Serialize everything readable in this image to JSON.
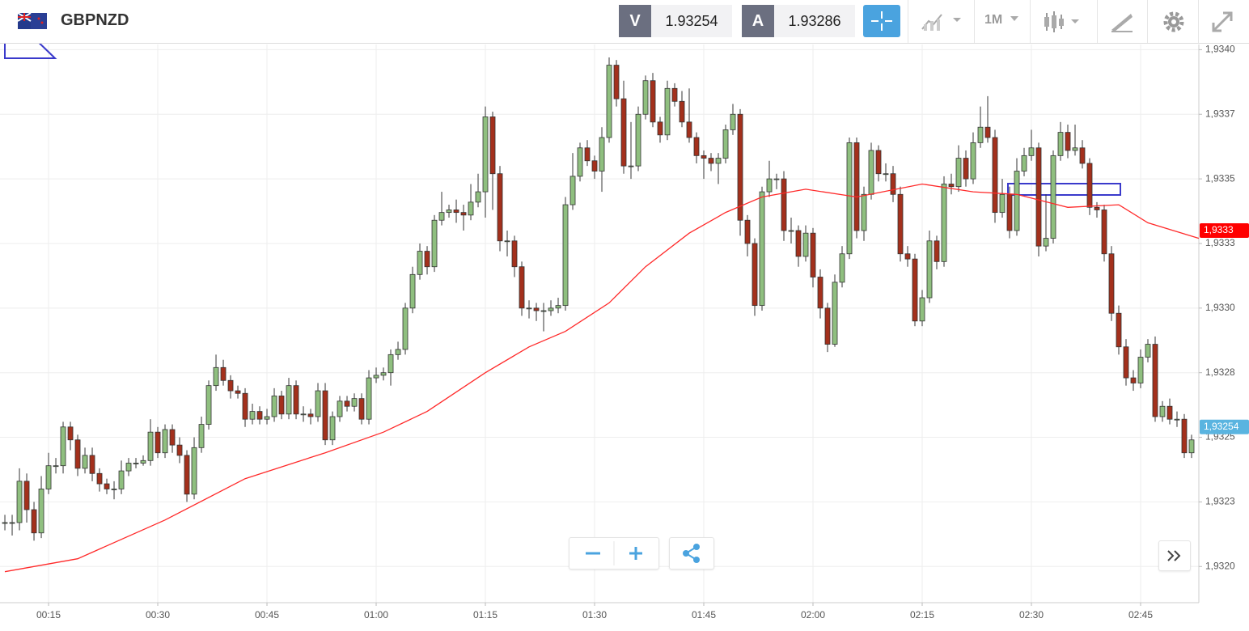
{
  "toolbar": {
    "symbol": "GBPNZD",
    "bid_label": "V",
    "bid": "1.93254",
    "ask_label": "A",
    "ask": "1.93286",
    "timeframe": "1M"
  },
  "chart_data": {
    "type": "candlestick",
    "x": [
      9,
      10,
      11,
      12,
      13,
      14,
      15,
      16,
      17,
      18,
      19,
      20,
      21,
      22,
      23,
      24,
      25,
      26,
      27,
      28,
      29,
      30,
      31,
      32,
      33,
      34,
      35,
      36,
      37,
      38,
      39,
      40,
      41,
      42,
      43,
      44,
      45,
      46,
      47,
      48,
      49,
      50,
      51,
      52,
      53,
      54,
      55,
      56,
      57,
      58,
      59,
      60,
      61,
      62,
      63,
      64,
      65,
      66,
      67,
      68,
      69,
      70,
      71,
      72,
      73,
      74,
      75,
      76,
      77,
      78,
      79,
      80,
      81,
      82,
      83,
      84,
      85,
      86,
      87,
      88,
      89,
      90,
      91,
      92,
      93,
      94,
      95,
      96,
      97,
      98,
      99,
      100,
      101,
      102,
      103,
      104,
      105,
      106,
      107,
      108,
      109,
      110,
      111,
      112,
      113,
      114,
      115,
      116,
      117,
      118,
      119,
      120,
      121,
      122,
      123,
      124,
      125,
      126,
      127,
      128,
      129,
      130,
      131,
      132,
      133,
      134,
      135,
      136,
      137,
      138,
      139,
      140,
      141,
      142,
      143,
      144,
      145,
      146,
      147,
      148,
      149,
      150,
      151,
      152,
      153,
      154,
      155,
      156,
      157,
      158,
      159,
      160,
      161,
      162,
      163,
      164,
      165,
      166,
      167,
      168,
      169,
      170,
      171,
      172
    ],
    "open": [
      1.93217,
      1.93217,
      1.93217,
      1.93233,
      1.93222,
      1.93213,
      1.9323,
      1.93239,
      1.93239,
      1.93254,
      1.93249,
      1.93238,
      1.93243,
      1.93236,
      1.93232,
      1.9323,
      1.9323,
      1.93237,
      1.9324,
      1.9324,
      1.93241,
      1.93252,
      1.93244,
      1.93253,
      1.93247,
      1.93243,
      1.93228,
      1.93246,
      1.93255,
      1.9327,
      1.93277,
      1.93272,
      1.93268,
      1.93267,
      1.93257,
      1.9326,
      1.93257,
      1.93258,
      1.93266,
      1.93259,
      1.9327,
      1.93259,
      1.93259,
      1.93258,
      1.93268,
      1.93249,
      1.93258,
      1.93264,
      1.93262,
      1.93265,
      1.93257,
      1.93273,
      1.93274,
      1.93275,
      1.93282,
      1.93284,
      1.933,
      1.93313,
      1.93322,
      1.93316,
      1.93334,
      1.93337,
      1.93338,
      1.93337,
      1.93336,
      1.93341,
      1.93345,
      1.93374,
      1.93352,
      1.93326,
      1.93326,
      1.93316,
      1.933,
      1.933,
      1.93299,
      1.93299,
      1.933,
      1.93301,
      1.9334,
      1.93351,
      1.93362,
      1.93357,
      1.93353,
      1.93366,
      1.93394,
      1.93381,
      1.93355,
      1.93355,
      1.93375,
      1.93388,
      1.93372,
      1.93367,
      1.93385,
      1.9338,
      1.93372,
      1.93366,
      1.93359,
      1.93358,
      1.93356,
      1.93358,
      1.93369,
      1.93375,
      1.93334,
      1.93325,
      1.93301,
      1.93345,
      1.9335,
      1.9335,
      1.9333,
      1.9333,
      1.9332,
      1.93329,
      1.93312,
      1.933,
      1.93286,
      1.9331,
      1.93321,
      1.93364,
      1.9333,
      1.93344,
      1.93361,
      1.93352,
      1.93352,
      1.93344,
      1.93321,
      1.93319,
      1.93295,
      1.93304,
      1.93326,
      1.93318,
      1.93348,
      1.93347,
      1.93358,
      1.9335,
      1.93364,
      1.9337,
      1.93366,
      1.93337,
      1.93344,
      1.9333,
      1.93353,
      1.93359,
      1.93362,
      1.93324,
      1.93327,
      1.93359,
      1.93368,
      1.93361,
      1.93362,
      1.93356,
      1.93339,
      1.93338,
      1.93321,
      1.93298,
      1.93285,
      1.93273,
      1.93271,
      1.93281,
      1.93286,
      1.93258,
      1.93262,
      1.93257,
      1.93257,
      1.93244
    ],
    "high": [
      1.9322,
      1.9322,
      1.93238,
      1.93236,
      1.93225,
      1.93235,
      1.93244,
      1.93242,
      1.93256,
      1.93256,
      1.93251,
      1.93246,
      1.93246,
      1.93238,
      1.93234,
      1.93233,
      1.93241,
      1.93242,
      1.93242,
      1.93243,
      1.93257,
      1.93254,
      1.93255,
      1.93255,
      1.9325,
      1.93245,
      1.9325,
      1.93258,
      1.93272,
      1.93282,
      1.9328,
      1.93274,
      1.9327,
      1.93269,
      1.93263,
      1.93262,
      1.93261,
      1.93269,
      1.93268,
      1.93273,
      1.93272,
      1.93262,
      1.93261,
      1.93271,
      1.93271,
      1.9326,
      1.93266,
      1.93266,
      1.93267,
      1.93267,
      1.93276,
      1.93277,
      1.93277,
      1.93284,
      1.93287,
      1.93302,
      1.93316,
      1.93325,
      1.93324,
      1.93336,
      1.93345,
      1.9334,
      1.93342,
      1.9334,
      1.93348,
      1.93352,
      1.93378,
      1.93376,
      1.93355,
      1.9333,
      1.93328,
      1.93318,
      1.93303,
      1.93302,
      1.93302,
      1.93303,
      1.93304,
      1.93343,
      1.9336,
      1.93364,
      1.93365,
      1.93359,
      1.9337,
      1.93397,
      1.93396,
      1.93388,
      1.93372,
      1.93378,
      1.9339,
      1.93391,
      1.93374,
      1.93388,
      1.93387,
      1.93384,
      1.93385,
      1.93368,
      1.93361,
      1.9336,
      1.9336,
      1.93371,
      1.93379,
      1.93377,
      1.93336,
      1.93327,
      1.93347,
      1.93357,
      1.93352,
      1.93353,
      1.93335,
      1.93332,
      1.93332,
      1.93331,
      1.93315,
      1.93302,
      1.93313,
      1.93324,
      1.93366,
      1.93366,
      1.93347,
      1.93364,
      1.93363,
      1.93356,
      1.93355,
      1.93347,
      1.93324,
      1.93321,
      1.93307,
      1.9333,
      1.93328,
      1.93351,
      1.93352,
      1.93363,
      1.93361,
      1.93368,
      1.93378,
      1.93382,
      1.93369,
      1.9335,
      1.93347,
      1.93358,
      1.93362,
      1.93369,
      1.93364,
      1.93344,
      1.93361,
      1.93372,
      1.93371,
      1.93371,
      1.93365,
      1.93358,
      1.93341,
      1.9334,
      1.93324,
      1.93301,
      1.93288,
      1.93276,
      1.93284,
      1.93288,
      1.93289,
      1.93264,
      1.93265,
      1.9326,
      1.93259,
      1.93251
    ],
    "low": [
      1.93214,
      1.93212,
      1.93214,
      1.93217,
      1.9321,
      1.93211,
      1.93228,
      1.93236,
      1.93236,
      1.93245,
      1.93235,
      1.93236,
      1.93233,
      1.93229,
      1.93228,
      1.93226,
      1.93228,
      1.93235,
      1.93238,
      1.93239,
      1.93239,
      1.93242,
      1.93242,
      1.93244,
      1.9324,
      1.93225,
      1.93226,
      1.93244,
      1.93253,
      1.93268,
      1.9327,
      1.93265,
      1.93265,
      1.93254,
      1.93255,
      1.93255,
      1.93255,
      1.93256,
      1.93257,
      1.93257,
      1.93257,
      1.93256,
      1.93255,
      1.93256,
      1.93247,
      1.93247,
      1.93256,
      1.9326,
      1.9326,
      1.93255,
      1.93255,
      1.93271,
      1.93272,
      1.9327,
      1.9328,
      1.93282,
      1.93298,
      1.93311,
      1.93313,
      1.93314,
      1.93332,
      1.93335,
      1.93333,
      1.9333,
      1.93334,
      1.93339,
      1.93335,
      1.93338,
      1.93322,
      1.9332,
      1.93312,
      1.93297,
      1.93296,
      1.93295,
      1.93291,
      1.93297,
      1.93298,
      1.93299,
      1.93338,
      1.93349,
      1.93355,
      1.9335,
      1.93345,
      1.93364,
      1.93378,
      1.93352,
      1.9335,
      1.93353,
      1.93373,
      1.9337,
      1.93364,
      1.93365,
      1.93378,
      1.9337,
      1.93364,
      1.93356,
      1.9335,
      1.93353,
      1.93348,
      1.93356,
      1.93367,
      1.93328,
      1.9332,
      1.93297,
      1.93299,
      1.93343,
      1.93346,
      1.93326,
      1.93325,
      1.93316,
      1.93318,
      1.93308,
      1.93296,
      1.93283,
      1.93285,
      1.93308,
      1.93319,
      1.93327,
      1.93326,
      1.93342,
      1.93349,
      1.93349,
      1.93341,
      1.93318,
      1.93316,
      1.93293,
      1.93293,
      1.93302,
      1.93315,
      1.93316,
      1.93344,
      1.93345,
      1.93347,
      1.93348,
      1.93362,
      1.93364,
      1.93333,
      1.93335,
      1.93327,
      1.93328,
      1.93351,
      1.93357,
      1.9332,
      1.93322,
      1.93325,
      1.93357,
      1.93358,
      1.93359,
      1.93354,
      1.93336,
      1.93335,
      1.93318,
      1.93295,
      1.93282,
      1.9327,
      1.93268,
      1.93269,
      1.93279,
      1.93256,
      1.93256,
      1.93255,
      1.93254,
      1.93242,
      1.93242
    ],
    "close": [
      1.93217,
      1.93217,
      1.93233,
      1.93222,
      1.93213,
      1.9323,
      1.93239,
      1.93239,
      1.93254,
      1.93249,
      1.93238,
      1.93243,
      1.93236,
      1.93232,
      1.9323,
      1.9323,
      1.93237,
      1.9324,
      1.9324,
      1.93241,
      1.93252,
      1.93244,
      1.93253,
      1.93247,
      1.93243,
      1.93228,
      1.93246,
      1.93255,
      1.9327,
      1.93277,
      1.93272,
      1.93268,
      1.93267,
      1.93257,
      1.9326,
      1.93257,
      1.93258,
      1.93266,
      1.93259,
      1.9327,
      1.93259,
      1.93259,
      1.93258,
      1.93268,
      1.93249,
      1.93258,
      1.93264,
      1.93262,
      1.93265,
      1.93257,
      1.93273,
      1.93274,
      1.93275,
      1.93282,
      1.93284,
      1.933,
      1.93313,
      1.93322,
      1.93316,
      1.93334,
      1.93337,
      1.93338,
      1.93337,
      1.93336,
      1.93341,
      1.93345,
      1.93374,
      1.93352,
      1.93326,
      1.93326,
      1.93316,
      1.933,
      1.933,
      1.93299,
      1.93299,
      1.933,
      1.93301,
      1.9334,
      1.93351,
      1.93362,
      1.93357,
      1.93353,
      1.93366,
      1.93394,
      1.93381,
      1.93355,
      1.93355,
      1.93375,
      1.93388,
      1.93372,
      1.93367,
      1.93385,
      1.9338,
      1.93372,
      1.93366,
      1.93359,
      1.93358,
      1.93356,
      1.93358,
      1.93369,
      1.93375,
      1.93334,
      1.93325,
      1.93301,
      1.93345,
      1.9335,
      1.9335,
      1.9333,
      1.9333,
      1.9332,
      1.93329,
      1.93312,
      1.933,
      1.93286,
      1.9331,
      1.93321,
      1.93364,
      1.9333,
      1.93344,
      1.93361,
      1.93352,
      1.93352,
      1.93344,
      1.93321,
      1.93319,
      1.93295,
      1.93304,
      1.93326,
      1.93318,
      1.93348,
      1.93347,
      1.93358,
      1.9335,
      1.93364,
      1.9337,
      1.93366,
      1.93337,
      1.93344,
      1.9333,
      1.93353,
      1.93359,
      1.93362,
      1.93324,
      1.93327,
      1.93359,
      1.93368,
      1.93361,
      1.93362,
      1.93356,
      1.93339,
      1.93338,
      1.93321,
      1.93298,
      1.93285,
      1.93273,
      1.93271,
      1.93281,
      1.93286,
      1.93258,
      1.93262,
      1.93257,
      1.93257,
      1.93244,
      1.93249
    ],
    "up_color": "#8fbf7f",
    "down_color": "#a3301c",
    "moving_average": {
      "color": "#ff2a2a",
      "x": [
        9,
        19,
        31,
        42,
        53,
        61,
        67,
        75,
        81,
        86,
        92,
        97,
        103,
        108,
        113,
        119,
        126,
        135,
        142,
        148,
        155,
        162,
        166,
        173
      ],
      "values": [
        1.93198,
        1.93203,
        1.93218,
        1.93234,
        1.93244,
        1.93252,
        1.9326,
        1.93275,
        1.93285,
        1.93291,
        1.93302,
        1.93316,
        1.93329,
        1.93337,
        1.93343,
        1.93346,
        1.93343,
        1.93348,
        1.93345,
        1.93344,
        1.93339,
        1.9334,
        1.93333,
        1.93327
      ]
    },
    "xlim": [
      8.33,
      173
    ],
    "ylim": [
      1.93186,
      1.93402
    ],
    "xticks": [
      {
        "value": 15,
        "label": "00:15"
      },
      {
        "value": 30,
        "label": "00:30"
      },
      {
        "value": 45,
        "label": "00:45"
      },
      {
        "value": 60,
        "label": "01:00"
      },
      {
        "value": 75,
        "label": "01:15"
      },
      {
        "value": 90,
        "label": "01:30"
      },
      {
        "value": 105,
        "label": "01:45"
      },
      {
        "value": 120,
        "label": "02:00"
      },
      {
        "value": 135,
        "label": "02:15"
      },
      {
        "value": 150,
        "label": "02:30"
      },
      {
        "value": 165,
        "label": "02:45"
      }
    ],
    "yticks": [
      {
        "value": 1.934,
        "label": "1,9340"
      },
      {
        "value": 1.93375,
        "label": "1,9337"
      },
      {
        "value": 1.9335,
        "label": "1,9335"
      },
      {
        "value": 1.93325,
        "label": "1,9333"
      },
      {
        "value": 1.933,
        "label": "1,9330"
      },
      {
        "value": 1.93275,
        "label": "1,9328"
      },
      {
        "value": 1.9325,
        "label": "1,9325"
      },
      {
        "value": 1.93225,
        "label": "1,9323"
      },
      {
        "value": 1.932,
        "label": "1,9320"
      }
    ],
    "grid": true,
    "price_labels": [
      {
        "value": 1.9333,
        "label": "1,9333",
        "color": "#ff0000"
      },
      {
        "value": 1.93254,
        "label": "1,93254",
        "color": "#5ab4e0"
      }
    ]
  }
}
